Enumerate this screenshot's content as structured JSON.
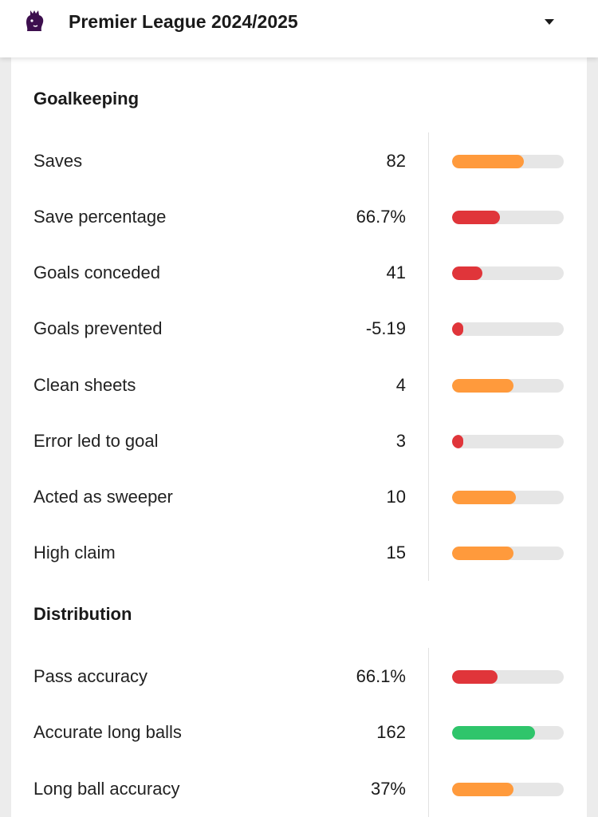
{
  "header": {
    "title": "Premier League 2024/2025",
    "logo_icon": "premier-league-lion-icon",
    "dropdown_icon": "caret-down-icon"
  },
  "colors": {
    "orange": "#ff9a3c",
    "red": "#e0353a",
    "green": "#2fc56b",
    "track": "#e6e6e6",
    "logo_purple": "#3d0f4e"
  },
  "sections": [
    {
      "title": "Goalkeeping",
      "stats": [
        {
          "label": "Saves",
          "value": "82",
          "level": 0.64,
          "color": "orange"
        },
        {
          "label": "Save percentage",
          "value": "66.7%",
          "level": 0.43,
          "color": "red"
        },
        {
          "label": "Goals conceded",
          "value": "41",
          "level": 0.27,
          "color": "red"
        },
        {
          "label": "Goals prevented",
          "value": "-5.19",
          "level": 0.1,
          "color": "red"
        },
        {
          "label": "Clean sheets",
          "value": "4",
          "level": 0.55,
          "color": "orange"
        },
        {
          "label": "Error led to goal",
          "value": "3",
          "level": 0.1,
          "color": "red"
        },
        {
          "label": "Acted as sweeper",
          "value": "10",
          "level": 0.57,
          "color": "orange"
        },
        {
          "label": "High claim",
          "value": "15",
          "level": 0.55,
          "color": "orange"
        }
      ]
    },
    {
      "title": "Distribution",
      "stats": [
        {
          "label": "Pass accuracy",
          "value": "66.1%",
          "level": 0.41,
          "color": "red"
        },
        {
          "label": "Accurate long balls",
          "value": "162",
          "level": 0.74,
          "color": "green"
        },
        {
          "label": "Long ball accuracy",
          "value": "37%",
          "level": 0.55,
          "color": "orange"
        }
      ]
    }
  ]
}
